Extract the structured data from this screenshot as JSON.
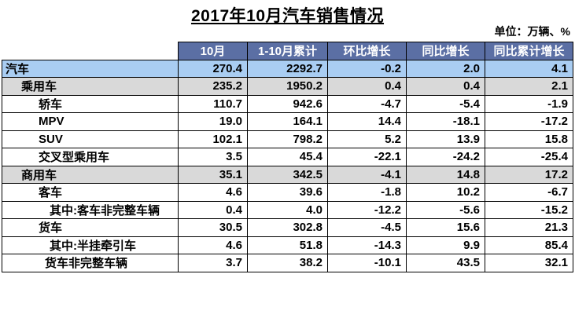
{
  "title": "2017年10月汽车销售情况",
  "unit": "单位：万辆、%",
  "headers": [
    "10月",
    "1-10月累计",
    "环比增长",
    "同比增长",
    "同比累计增长"
  ],
  "rows": [
    {
      "label": "汽车",
      "values": [
        "270.4",
        "2292.7",
        "-0.2",
        "2.0",
        "4.1"
      ]
    },
    {
      "label": "乘用车",
      "values": [
        "235.2",
        "1950.2",
        "0.4",
        "0.4",
        "2.1"
      ]
    },
    {
      "label": "轿车",
      "values": [
        "110.7",
        "942.6",
        "-4.7",
        "-5.4",
        "-1.9"
      ]
    },
    {
      "label": "MPV",
      "values": [
        "19.0",
        "164.1",
        "14.4",
        "-18.1",
        "-17.2"
      ]
    },
    {
      "label": "SUV",
      "values": [
        "102.1",
        "798.2",
        "5.2",
        "13.9",
        "15.8"
      ]
    },
    {
      "label": "交叉型乘用车",
      "values": [
        "3.5",
        "45.4",
        "-22.1",
        "-24.2",
        "-25.4"
      ]
    },
    {
      "label": "商用车",
      "values": [
        "35.1",
        "342.5",
        "-4.1",
        "14.8",
        "17.2"
      ]
    },
    {
      "label": "客车",
      "values": [
        "4.6",
        "39.6",
        "-1.8",
        "10.2",
        "-6.7"
      ]
    },
    {
      "label": "其中:客车非完整车辆",
      "values": [
        "0.4",
        "4.0",
        "-12.2",
        "-5.6",
        "-15.2"
      ]
    },
    {
      "label": "货车",
      "values": [
        "30.5",
        "302.8",
        "-4.5",
        "15.6",
        "21.3"
      ]
    },
    {
      "label": "其中:半挂牵引车",
      "values": [
        "4.6",
        "51.8",
        "-14.3",
        "9.9",
        "85.4"
      ]
    },
    {
      "label": "货车非完整车辆",
      "values": [
        "3.7",
        "38.2",
        "-10.1",
        "43.5",
        "32.1"
      ]
    }
  ]
}
